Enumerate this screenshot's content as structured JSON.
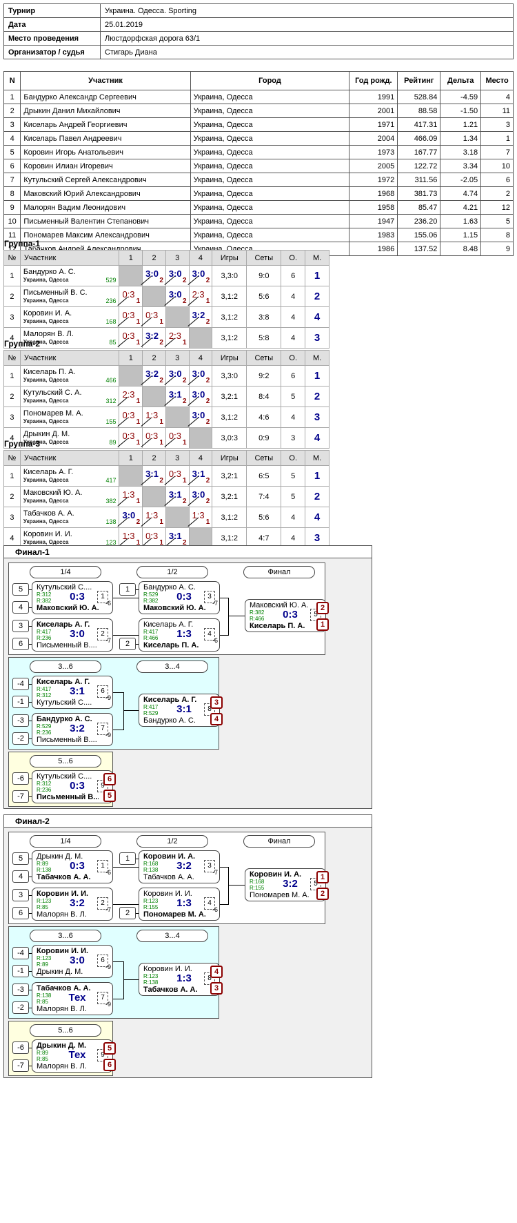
{
  "info": {
    "rows": [
      {
        "k": "Турнир",
        "v": "Украина. Одесса. Sporting"
      },
      {
        "k": "Дата",
        "v": "25.01.2019"
      },
      {
        "k": "Место проведения",
        "v": "Люстдорфская дорога 63/1"
      },
      {
        "k": "Организатор / судья",
        "v": "Стигарь Диана"
      }
    ]
  },
  "participants": {
    "headers": [
      "N",
      "Участник",
      "Город",
      "Год рожд.",
      "Рейтинг",
      "Дельта",
      "Место"
    ],
    "rows": [
      [
        "1",
        "Бандурко Александр Сергеевич",
        "Украина, Одесса",
        "1991",
        "528.84",
        "-4.59",
        "4"
      ],
      [
        "2",
        "Дрыкин Данил Михайлович",
        "Украина, Одесса",
        "2001",
        "88.58",
        "-1.50",
        "11"
      ],
      [
        "3",
        "Киселарь Андрей Георгиевич",
        "Украина, Одесса",
        "1971",
        "417.31",
        "1.21",
        "3"
      ],
      [
        "4",
        "Киселарь Павел Андреевич",
        "Украина, Одесса",
        "2004",
        "466.09",
        "1.34",
        "1"
      ],
      [
        "5",
        "Коровин Игорь Анатольевич",
        "Украина, Одесса",
        "1973",
        "167.77",
        "3.18",
        "7"
      ],
      [
        "6",
        "Коровин Илиан Игоревич",
        "Украина, Одесса",
        "2005",
        "122.72",
        "3.34",
        "10"
      ],
      [
        "7",
        "Кутульский Сергей Александрович",
        "Украина, Одесса",
        "1972",
        "311.56",
        "-2.05",
        "6"
      ],
      [
        "8",
        "Маковский Юрий Александрович",
        "Украина, Одесса",
        "1968",
        "381.73",
        "4.74",
        "2"
      ],
      [
        "9",
        "Малорян Вадим Леонидович",
        "Украина, Одесса",
        "1958",
        "85.47",
        "4.21",
        "12"
      ],
      [
        "10",
        "Письменный Валентин Степанович",
        "Украина, Одесса",
        "1947",
        "236.20",
        "1.63",
        "5"
      ],
      [
        "11",
        "Пономарев Максим Александрович",
        "Украина, Одесса",
        "1983",
        "155.06",
        "1.15",
        "8"
      ],
      [
        "12",
        "Табачков Андрей Александрович",
        "Украина, Одесса",
        "1986",
        "137.52",
        "8.48",
        "9"
      ]
    ]
  },
  "group_headers": [
    "№",
    "Участник",
    "1",
    "2",
    "3",
    "4",
    "Игры",
    "Сеты",
    "О.",
    "М."
  ],
  "groups": [
    {
      "title": "Группа-1",
      "rows": [
        {
          "n": "1",
          "name": "Бандурко А. С.",
          "city": "Украина, Одесса",
          "rating": "529",
          "cells": [
            null,
            {
              "s": "3:0",
              "n": "2",
              "w": true
            },
            {
              "s": "3:0",
              "n": "2",
              "w": true
            },
            {
              "s": "3:0",
              "n": "2",
              "w": true
            }
          ],
          "games": "3,3:0",
          "sets": "9:0",
          "pts": "6",
          "place": "1"
        },
        {
          "n": "2",
          "name": "Письменный В. С.",
          "city": "Украина, Одесса",
          "rating": "236",
          "cells": [
            {
              "s": "0:3",
              "n": "1",
              "w": false
            },
            null,
            {
              "s": "3:0",
              "n": "2",
              "w": true
            },
            {
              "s": "2:3",
              "n": "1",
              "w": false
            }
          ],
          "games": "3,1:2",
          "sets": "5:6",
          "pts": "4",
          "place": "2"
        },
        {
          "n": "3",
          "name": "Коровин И. А.",
          "city": "Украина, Одесса",
          "rating": "168",
          "cells": [
            {
              "s": "0:3",
              "n": "1",
              "w": false
            },
            {
              "s": "0:3",
              "n": "1",
              "w": false
            },
            null,
            {
              "s": "3:2",
              "n": "2",
              "w": true
            }
          ],
          "games": "3,1:2",
          "sets": "3:8",
          "pts": "4",
          "place": "4"
        },
        {
          "n": "4",
          "name": "Малорян В. Л.",
          "city": "Украина, Одесса",
          "rating": "85",
          "cells": [
            {
              "s": "0:3",
              "n": "1",
              "w": false
            },
            {
              "s": "3:2",
              "n": "2",
              "w": true
            },
            {
              "s": "2:3",
              "n": "1",
              "w": false
            },
            null
          ],
          "games": "3,1:2",
          "sets": "5:8",
          "pts": "4",
          "place": "3"
        }
      ]
    },
    {
      "title": "Группа-2",
      "rows": [
        {
          "n": "1",
          "name": "Киселарь П. А.",
          "city": "Украина, Одесса",
          "rating": "466",
          "cells": [
            null,
            {
              "s": "3:2",
              "n": "2",
              "w": true
            },
            {
              "s": "3:0",
              "n": "2",
              "w": true
            },
            {
              "s": "3:0",
              "n": "2",
              "w": true
            }
          ],
          "games": "3,3:0",
          "sets": "9:2",
          "pts": "6",
          "place": "1"
        },
        {
          "n": "2",
          "name": "Кутульский С. А.",
          "city": "Украина, Одесса",
          "rating": "312",
          "cells": [
            {
              "s": "2:3",
              "n": "1",
              "w": false
            },
            null,
            {
              "s": "3:1",
              "n": "2",
              "w": true
            },
            {
              "s": "3:0",
              "n": "2",
              "w": true
            }
          ],
          "games": "3,2:1",
          "sets": "8:4",
          "pts": "5",
          "place": "2"
        },
        {
          "n": "3",
          "name": "Пономарев М. А.",
          "city": "Украина, Одесса",
          "rating": "155",
          "cells": [
            {
              "s": "0:3",
              "n": "1",
              "w": false
            },
            {
              "s": "1:3",
              "n": "1",
              "w": false
            },
            null,
            {
              "s": "3:0",
              "n": "2",
              "w": true
            }
          ],
          "games": "3,1:2",
          "sets": "4:6",
          "pts": "4",
          "place": "3"
        },
        {
          "n": "4",
          "name": "Дрыкин Д. М.",
          "city": "Украина, Одесса",
          "rating": "89",
          "cells": [
            {
              "s": "0:3",
              "n": "1",
              "w": false
            },
            {
              "s": "0:3",
              "n": "1",
              "w": false
            },
            {
              "s": "0:3",
              "n": "1",
              "w": false
            },
            null
          ],
          "games": "3,0:3",
          "sets": "0:9",
          "pts": "3",
          "place": "4"
        }
      ]
    },
    {
      "title": "Группа-3",
      "rows": [
        {
          "n": "1",
          "name": "Киселарь А. Г.",
          "city": "Украина, Одесса",
          "rating": "417",
          "cells": [
            null,
            {
              "s": "3:1",
              "n": "2",
              "w": true
            },
            {
              "s": "0:3",
              "n": "1",
              "w": false
            },
            {
              "s": "3:1",
              "n": "2",
              "w": true
            }
          ],
          "games": "3,2:1",
          "sets": "6:5",
          "pts": "5",
          "place": "1"
        },
        {
          "n": "2",
          "name": "Маковский Ю. А.",
          "city": "Украина, Одесса",
          "rating": "382",
          "cells": [
            {
              "s": "1:3",
              "n": "1",
              "w": false
            },
            null,
            {
              "s": "3:1",
              "n": "2",
              "w": true
            },
            {
              "s": "3:0",
              "n": "2",
              "w": true
            }
          ],
          "games": "3,2:1",
          "sets": "7:4",
          "pts": "5",
          "place": "2"
        },
        {
          "n": "3",
          "name": "Табачков А. А.",
          "city": "Украина, Одесса",
          "rating": "138",
          "cells": [
            {
              "s": "3:0",
              "n": "2",
              "w": true
            },
            {
              "s": "1:3",
              "n": "1",
              "w": false
            },
            null,
            {
              "s": "1:3",
              "n": "1",
              "w": false
            }
          ],
          "games": "3,1:2",
          "sets": "5:6",
          "pts": "4",
          "place": "4"
        },
        {
          "n": "4",
          "name": "Коровин И. И.",
          "city": "Украина, Одесса",
          "rating": "123",
          "cells": [
            {
              "s": "1:3",
              "n": "1",
              "w": false
            },
            {
              "s": "0:3",
              "n": "1",
              "w": false
            },
            {
              "s": "3:1",
              "n": "2",
              "w": true
            },
            null
          ],
          "games": "3,1:2",
          "sets": "4:7",
          "pts": "4",
          "place": "3"
        }
      ]
    }
  ],
  "finals": [
    {
      "title": "Финал-1",
      "labels": {
        "r1": "1/4",
        "r2": "1/2",
        "r3": "Финал",
        "c1": "3...6",
        "c2": "3...4",
        "d1": "5...6"
      },
      "seeds": {
        "a": "5",
        "b": "4",
        "c": "3",
        "d": "6",
        "e": "1",
        "f": "2",
        "g": "-4",
        "h": "-1",
        "i": "-3",
        "j": "-2",
        "k": "-6",
        "l": "-7"
      },
      "links": {
        "m1": "-6",
        "m2": "-7",
        "m3": "-7",
        "m4": "-6",
        "m6": "-9",
        "m7": "-9"
      },
      "matches": {
        "m1": {
          "p1": "Кутульский С....",
          "p1b": false,
          "r1": "R:312",
          "r2": "R:382",
          "p2": "Маковский Ю. А.",
          "p2b": true,
          "score": "0:3",
          "num": "1"
        },
        "m2": {
          "p1": "Киселарь А. Г.",
          "p1b": true,
          "r1": "R:417",
          "r2": "R:236",
          "p2": "Письменный В....",
          "p2b": false,
          "score": "3:0",
          "num": "2"
        },
        "m3": {
          "p1": "Бандурко А. С.",
          "p1b": false,
          "r1": "R:529",
          "r2": "R:382",
          "p2": "Маковский Ю. А.",
          "p2b": true,
          "score": "0:3",
          "num": "3"
        },
        "m4": {
          "p1": "Киселарь А. Г.",
          "p1b": false,
          "r1": "R:417",
          "r2": "R:466",
          "p2": "Киселарь П. А.",
          "p2b": true,
          "score": "1:3",
          "num": "4"
        },
        "m5": {
          "p1": "Маковский Ю. А.",
          "p1b": false,
          "r1": "R:382",
          "r2": "R:466",
          "p2": "Киселарь П. А.",
          "p2b": true,
          "score": "0:3",
          "num": "5",
          "pl1": "2",
          "pl2": "1"
        },
        "m6": {
          "p1": "Киселарь А. Г.",
          "p1b": true,
          "r1": "R:417",
          "r2": "R:312",
          "p2": "Кутульский С....",
          "p2b": false,
          "score": "3:1",
          "num": "6"
        },
        "m7": {
          "p1": "Бандурко А. С.",
          "p1b": true,
          "r1": "R:529",
          "r2": "R:236",
          "p2": "Письменный В....",
          "p2b": false,
          "score": "3:2",
          "num": "7"
        },
        "m8": {
          "p1": "Киселарь А. Г.",
          "p1b": true,
          "r1": "R:417",
          "r2": "R:529",
          "p2": "Бандурко А. С.",
          "p2b": false,
          "score": "3:1",
          "num": "8",
          "pl1": "3",
          "pl2": "4"
        },
        "m9": {
          "p1": "Кутульский С....",
          "p1b": false,
          "r1": "R:312",
          "r2": "R:236",
          "p2": "Письменный В....",
          "p2b": true,
          "score": "0:3",
          "num": "9",
          "pl1": "6",
          "pl2": "5"
        }
      }
    },
    {
      "title": "Финал-2",
      "labels": {
        "r1": "1/4",
        "r2": "1/2",
        "r3": "Финал",
        "c1": "3...6",
        "c2": "3...4",
        "d1": "5...6"
      },
      "seeds": {
        "a": "5",
        "b": "4",
        "c": "3",
        "d": "6",
        "e": "1",
        "f": "2",
        "g": "-4",
        "h": "-1",
        "i": "-3",
        "j": "-2",
        "k": "-6",
        "l": "-7"
      },
      "links": {
        "m1": "-6",
        "m2": "-7",
        "m3": "-7",
        "m4": "-6",
        "m6": "-9",
        "m7": "-9"
      },
      "matches": {
        "m1": {
          "p1": "Дрыкин Д. М.",
          "p1b": false,
          "r1": "R:89",
          "r2": "R:138",
          "p2": "Табачков А. А.",
          "p2b": true,
          "score": "0:3",
          "num": "1"
        },
        "m2": {
          "p1": "Коровин И. И.",
          "p1b": true,
          "r1": "R:123",
          "r2": "R:85",
          "p2": "Малорян В. Л.",
          "p2b": false,
          "score": "3:2",
          "num": "2"
        },
        "m3": {
          "p1": "Коровин И. А.",
          "p1b": true,
          "r1": "R:168",
          "r2": "R:138",
          "p2": "Табачков А. А.",
          "p2b": false,
          "score": "3:2",
          "num": "3"
        },
        "m4": {
          "p1": "Коровин И. И.",
          "p1b": false,
          "r1": "R:123",
          "r2": "R:155",
          "p2": "Пономарев М. А.",
          "p2b": true,
          "score": "1:3",
          "num": "4"
        },
        "m5": {
          "p1": "Коровин И. А.",
          "p1b": true,
          "r1": "R:168",
          "r2": "R:155",
          "p2": "Пономарев М. А.",
          "p2b": false,
          "score": "3:2",
          "num": "5",
          "pl1": "1",
          "pl2": "2"
        },
        "m6": {
          "p1": "Коровин И. И.",
          "p1b": true,
          "r1": "R:123",
          "r2": "R:89",
          "p2": "Дрыкин Д. М.",
          "p2b": false,
          "score": "3:0",
          "num": "6"
        },
        "m7": {
          "p1": "Табачков А. А.",
          "p1b": true,
          "r1": "R:138",
          "r2": "R:85",
          "p2": "Малорян В. Л.",
          "p2b": false,
          "score": "Тех",
          "num": "7"
        },
        "m8": {
          "p1": "Коровин И. И.",
          "p1b": false,
          "r1": "R:123",
          "r2": "R:138",
          "p2": "Табачков А. А.",
          "p2b": true,
          "score": "1:3",
          "num": "8",
          "pl1": "4",
          "pl2": "3"
        },
        "m9": {
          "p1": "Дрыкин Д. М.",
          "p1b": true,
          "r1": "R:89",
          "r2": "R:85",
          "p2": "Малорян В. Л.",
          "p2b": false,
          "score": "Тех",
          "num": "9",
          "pl1": "5",
          "pl2": "6"
        }
      }
    }
  ]
}
